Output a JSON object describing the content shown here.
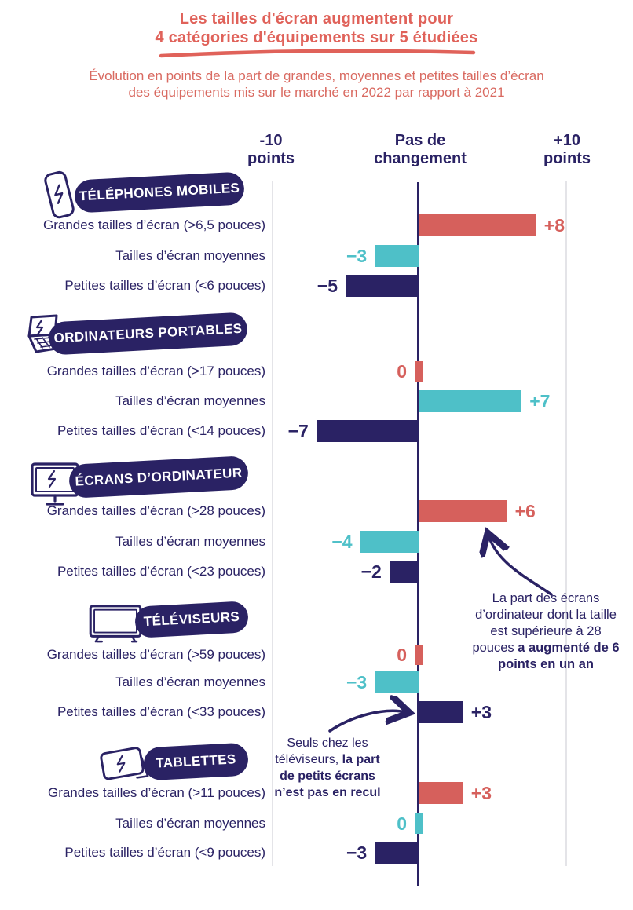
{
  "title": {
    "line1": "Les tailles d'écran augmentent pour",
    "line2": "4 catégories d'équipements sur 5 étudiées"
  },
  "subtitle": {
    "line1": "Évolution en points de la part de grandes, moyennes et petites tailles d’écran",
    "line2": "des équipements mis sur le marché en 2022 par rapport à 2021"
  },
  "axis": {
    "left": [
      "-10",
      "points"
    ],
    "center": [
      "Pas de",
      "changement"
    ],
    "right": [
      "+10",
      "points"
    ]
  },
  "colors": {
    "navy": "#2A2264",
    "coral": "#D6605C",
    "teal": "#4EC0C8",
    "title_red": "#E0625A",
    "subtitle_red": "#D96A61",
    "gridline": "#E4E4E8",
    "badge_text": "#FFFFFF"
  },
  "chart_data": {
    "type": "bar",
    "orientation": "horizontal",
    "unit": "points",
    "xlim": [
      -10,
      10
    ],
    "title": "Évolution en points de la part de grandes, moyennes et petites tailles d’écran des équipements mis sur le marché en 2022 par rapport à 2021",
    "groups": [
      {
        "label": "TÉLÉPHONES MOBILES",
        "icon": "smartphone-icon",
        "rows": [
          {
            "label": "Grandes tailles d’écran (>6,5 pouces)",
            "value": 8,
            "display": "+8",
            "color": "coral"
          },
          {
            "label": "Tailles d’écran moyennes",
            "value": -3,
            "display": "−3",
            "color": "teal"
          },
          {
            "label": "Petites tailles d’écran (<6 pouces)",
            "value": -5,
            "display": "−5",
            "color": "navy"
          }
        ]
      },
      {
        "label": "ORDINATEURS PORTABLES",
        "icon": "laptop-icon",
        "rows": [
          {
            "label": "Grandes tailles d’écran (>17 pouces)",
            "value": 0,
            "display": "0",
            "color": "coral"
          },
          {
            "label": "Tailles d’écran moyennes",
            "value": 7,
            "display": "+7",
            "color": "teal"
          },
          {
            "label": "Petites tailles d’écran (<14 pouces)",
            "value": -7,
            "display": "−7",
            "color": "navy"
          }
        ]
      },
      {
        "label": "ÉCRANS D’ORDINATEUR",
        "icon": "monitor-icon",
        "rows": [
          {
            "label": "Grandes tailles d’écran (>28 pouces)",
            "value": 6,
            "display": "+6",
            "color": "coral"
          },
          {
            "label": "Tailles d’écran moyennes",
            "value": -4,
            "display": "−4",
            "color": "teal"
          },
          {
            "label": "Petites tailles d’écran (<23 pouces)",
            "value": -2,
            "display": "−2",
            "color": "navy"
          }
        ]
      },
      {
        "label": "TÉLÉVISEURS",
        "icon": "tv-icon",
        "rows": [
          {
            "label": "Grandes tailles d’écran (>59 pouces)",
            "value": 0,
            "display": "0",
            "color": "coral"
          },
          {
            "label": "Tailles d’écran moyennes",
            "value": -3,
            "display": "−3",
            "color": "teal"
          },
          {
            "label": "Petites tailles d’écran (<33 pouces)",
            "value": 3,
            "display": "+3",
            "color": "navy"
          }
        ]
      },
      {
        "label": "TABLETTES",
        "icon": "tablet-icon",
        "rows": [
          {
            "label": "Grandes tailles d’écran (>11 pouces)",
            "value": 3,
            "display": "+3",
            "color": "coral"
          },
          {
            "label": "Tailles d’écran moyennes",
            "value": 0,
            "display": "0",
            "color": "teal"
          },
          {
            "label": "Petites tailles d’écran (<9 pouces)",
            "value": -3,
            "display": "−3",
            "color": "navy"
          }
        ]
      }
    ]
  },
  "annotations": [
    {
      "text_normal": "La part des écrans d’ordinateur dont la taille est supérieure à 28 pouces ",
      "text_bold": "a augmenté de 6 points en un an"
    },
    {
      "text_normal": "Seuls chez les téléviseurs, ",
      "text_bold": "la part de petits écrans n’est pas en recul"
    }
  ]
}
